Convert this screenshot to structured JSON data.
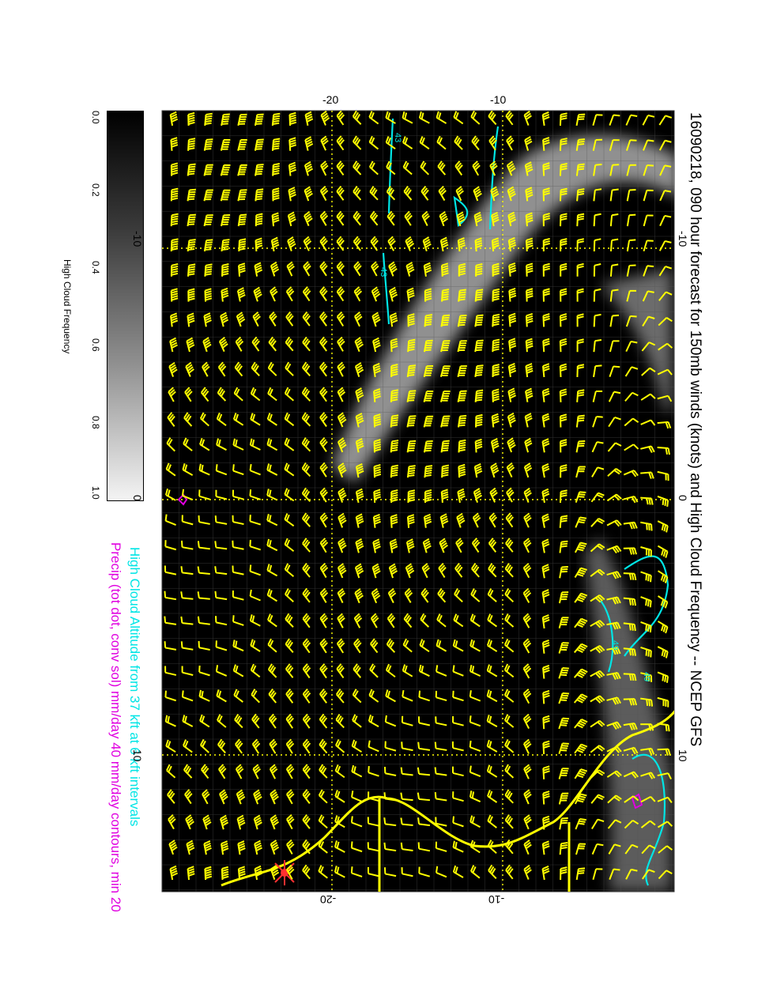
{
  "title": "16090218, 090 hour forecast for 150mb winds (knots) and High Cloud Frequency -- NCEP GFS",
  "notes": {
    "high_cloud_altitude": "High Cloud Altitude from 37 kft at 6 kft intervals",
    "precip": "Precip (tot dot, conv sol) mm/day 40 mm/day contours, min 20"
  },
  "colorbar": {
    "label": "High Cloud Frequency",
    "ticks": [
      "0.0",
      "0.2",
      "0.4",
      "0.6",
      "0.8",
      "1.0"
    ]
  },
  "axes": {
    "top_labels": [
      "-20",
      "-10"
    ],
    "bottom_labels": [
      "-20",
      "-10"
    ],
    "left_labels": [
      "-10",
      "0",
      "10"
    ],
    "right_labels": [
      "-10",
      "0",
      "10"
    ]
  },
  "contour_labels": [
    "43",
    "43",
    "49",
    "49"
  ],
  "colors": {
    "background": "#000000",
    "barbs": "#ffff00",
    "cloud_altitude": "#00e5e5",
    "precip": "#e000e0",
    "coastline": "#ffff00"
  }
}
